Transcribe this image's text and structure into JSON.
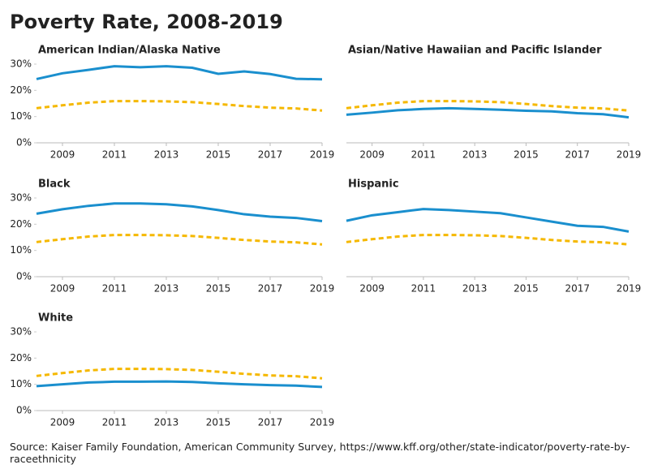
{
  "title": "Poverty Rate, 2008-2019",
  "source": "Source: Kaiser Family Foundation, American Community Survey, https://www.kff.org/other/state-indicator/poverty-rate-by-raceethnicity",
  "chart_data": [
    {
      "type": "line",
      "title": "American Indian/Alaska Native",
      "x": [
        2008,
        2009,
        2010,
        2011,
        2012,
        2013,
        2014,
        2015,
        2016,
        2017,
        2018,
        2019
      ],
      "xlim": [
        2008,
        2019
      ],
      "xticks": [
        2009,
        2011,
        2013,
        2015,
        2017,
        2019
      ],
      "ylim": [
        0,
        30
      ],
      "yticks": [
        {
          "value": 0,
          "label": "0%"
        },
        {
          "value": 10,
          "label": "10%"
        },
        {
          "value": 20,
          "label": "20%"
        },
        {
          "value": 30,
          "label": "30%"
        }
      ],
      "series": [
        {
          "color": "#1a8fce",
          "style": "solid",
          "values": [
            24.3,
            26.5,
            27.8,
            29.2,
            28.8,
            29.2,
            28.6,
            26.3,
            27.2,
            26.2,
            24.4,
            24.2
          ]
        },
        {
          "color": "#f5b800",
          "style": "dashed",
          "values": [
            13.2,
            14.3,
            15.3,
            15.9,
            15.9,
            15.8,
            15.5,
            14.8,
            14.0,
            13.4,
            13.1,
            12.3
          ]
        }
      ]
    },
    {
      "type": "line",
      "title": "Asian/Native Hawaiian and Pacific Islander",
      "x": [
        2008,
        2009,
        2010,
        2011,
        2012,
        2013,
        2014,
        2015,
        2016,
        2017,
        2018,
        2019
      ],
      "xlim": [
        2008,
        2019
      ],
      "xticks": [
        2009,
        2011,
        2013,
        2015,
        2017,
        2019
      ],
      "ylim": [
        0,
        30
      ],
      "series": [
        {
          "color": "#1a8fce",
          "style": "solid",
          "values": [
            10.7,
            11.5,
            12.4,
            12.9,
            13.2,
            12.9,
            12.6,
            12.2,
            12.0,
            11.3,
            10.9,
            9.7
          ]
        },
        {
          "color": "#f5b800",
          "style": "dashed",
          "values": [
            13.2,
            14.3,
            15.3,
            15.9,
            15.9,
            15.8,
            15.5,
            14.8,
            14.0,
            13.4,
            13.1,
            12.3
          ]
        }
      ]
    },
    {
      "type": "line",
      "title": "Black",
      "x": [
        2008,
        2009,
        2010,
        2011,
        2012,
        2013,
        2014,
        2015,
        2016,
        2017,
        2018,
        2019
      ],
      "xlim": [
        2008,
        2019
      ],
      "xticks": [
        2009,
        2011,
        2013,
        2015,
        2017,
        2019
      ],
      "ylim": [
        0,
        30
      ],
      "yticks": [
        {
          "value": 0,
          "label": "0%"
        },
        {
          "value": 10,
          "label": "10%"
        },
        {
          "value": 20,
          "label": "20%"
        },
        {
          "value": 30,
          "label": "30%"
        }
      ],
      "series": [
        {
          "color": "#1a8fce",
          "style": "solid",
          "values": [
            24.0,
            25.7,
            27.0,
            27.9,
            27.9,
            27.6,
            26.8,
            25.4,
            23.8,
            22.9,
            22.4,
            21.2
          ]
        },
        {
          "color": "#f5b800",
          "style": "dashed",
          "values": [
            13.2,
            14.3,
            15.3,
            15.9,
            15.9,
            15.8,
            15.5,
            14.8,
            14.0,
            13.4,
            13.1,
            12.3
          ]
        }
      ]
    },
    {
      "type": "line",
      "title": "Hispanic",
      "x": [
        2008,
        2009,
        2010,
        2011,
        2012,
        2013,
        2014,
        2015,
        2016,
        2017,
        2018,
        2019
      ],
      "xlim": [
        2008,
        2019
      ],
      "xticks": [
        2009,
        2011,
        2013,
        2015,
        2017,
        2019
      ],
      "ylim": [
        0,
        30
      ],
      "series": [
        {
          "color": "#1a8fce",
          "style": "solid",
          "values": [
            21.3,
            23.4,
            24.6,
            25.8,
            25.4,
            24.8,
            24.2,
            22.6,
            21.0,
            19.4,
            19.0,
            17.2
          ]
        },
        {
          "color": "#f5b800",
          "style": "dashed",
          "values": [
            13.2,
            14.3,
            15.3,
            15.9,
            15.9,
            15.8,
            15.5,
            14.8,
            14.0,
            13.4,
            13.1,
            12.3
          ]
        }
      ]
    },
    {
      "type": "line",
      "title": "White",
      "x": [
        2008,
        2009,
        2010,
        2011,
        2012,
        2013,
        2014,
        2015,
        2016,
        2017,
        2018,
        2019
      ],
      "xlim": [
        2008,
        2019
      ],
      "xticks": [
        2009,
        2011,
        2013,
        2015,
        2017,
        2019
      ],
      "ylim": [
        0,
        30
      ],
      "yticks": [
        {
          "value": 0,
          "label": "0%"
        },
        {
          "value": 10,
          "label": "10%"
        },
        {
          "value": 20,
          "label": "20%"
        },
        {
          "value": 30,
          "label": "30%"
        }
      ],
      "series": [
        {
          "color": "#1a8fce",
          "style": "solid",
          "values": [
            9.3,
            10.0,
            10.7,
            11.0,
            11.0,
            11.1,
            10.9,
            10.4,
            10.0,
            9.7,
            9.5,
            9.0
          ]
        },
        {
          "color": "#f5b800",
          "style": "dashed",
          "values": [
            13.2,
            14.3,
            15.3,
            15.9,
            15.9,
            15.8,
            15.5,
            14.8,
            14.0,
            13.4,
            13.1,
            12.3
          ]
        }
      ]
    }
  ]
}
